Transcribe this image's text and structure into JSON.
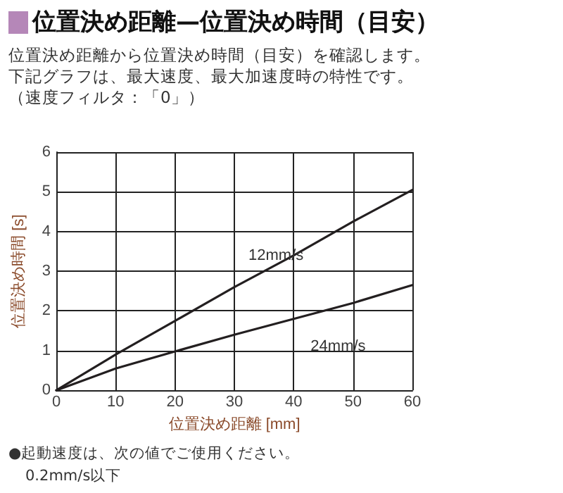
{
  "chart_data": {
    "type": "line",
    "title": "位置決め距離—位置決め時間（目安）",
    "subtitle": "位置決め距離から位置決め時間（目安）を確認します。",
    "xlabel": "位置決め距離 [mm]",
    "ylabel": "位置決め時間 [s]",
    "annotations": [
      "下記グラフは、最大速度、最大加速度時の特性です。",
      "（速度フィルタ：「0」）",
      "●起動速度は、次の値でご使用ください。",
      "0.2mm/s以下"
    ],
    "x": [
      0,
      10,
      20,
      30,
      40,
      50,
      60
    ],
    "series": [
      {
        "name": "12mm/s",
        "color": "#231f20",
        "values": [
          0,
          0.9,
          1.75,
          2.6,
          3.4,
          4.25,
          5.05
        ]
      },
      {
        "name": "24mm/s",
        "color": "#231f20",
        "values": [
          0,
          0.55,
          0.98,
          1.4,
          1.8,
          2.2,
          2.65
        ]
      }
    ],
    "xlim": [
      0,
      60
    ],
    "xticks": [
      0,
      10,
      20,
      30,
      40,
      50,
      60
    ],
    "ylim": [
      0,
      6
    ],
    "yticks": [
      0,
      1,
      2,
      3,
      4,
      5,
      6
    ],
    "grid": true,
    "legend": false,
    "marker": "none",
    "line_style": "solid"
  }
}
